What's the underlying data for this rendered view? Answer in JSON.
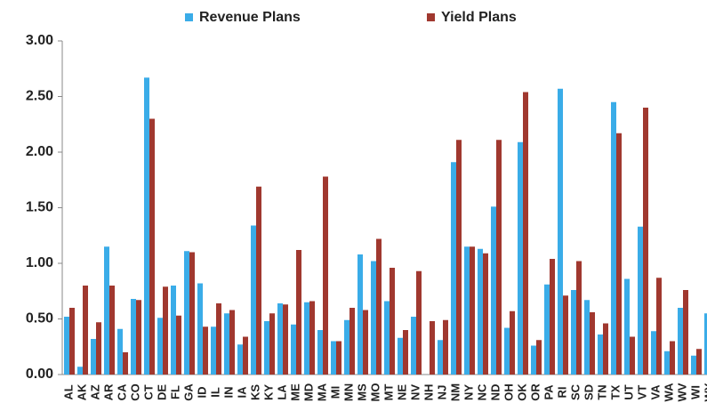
{
  "chart_data": {
    "type": "bar",
    "categories": [
      "AL",
      "AK",
      "AZ",
      "AR",
      "CA",
      "CO",
      "CT",
      "DE",
      "FL",
      "GA",
      "ID",
      "IL",
      "IN",
      "IA",
      "KS",
      "KY",
      "LA",
      "ME",
      "MD",
      "MA",
      "MI",
      "MN",
      "MS",
      "MO",
      "MT",
      "NE",
      "NV",
      "NH",
      "NJ",
      "NM",
      "NY",
      "NC",
      "ND",
      "OH",
      "OK",
      "OR",
      "PA",
      "RI",
      "SC",
      "SD",
      "TN",
      "TX",
      "UT",
      "VT",
      "VA",
      "WA",
      "WV",
      "WI",
      "WY"
    ],
    "series": [
      {
        "name": "Revenue Plans",
        "color": "#3aace8",
        "values": [
          0.52,
          0.07,
          0.32,
          1.15,
          0.41,
          0.68,
          2.67,
          0.51,
          0.8,
          1.11,
          0.82,
          0.43,
          0.55,
          0.27,
          1.34,
          0.48,
          0.64,
          0.45,
          0.65,
          0.4,
          0.3,
          0.49,
          1.08,
          1.02,
          0.66,
          0.33,
          0.52,
          0,
          0.31,
          1.91,
          1.15,
          1.13,
          1.51,
          0.42,
          2.09,
          0.26,
          0.81,
          2.57,
          0.76,
          0.67,
          0.36,
          2.45,
          0.86,
          1.33,
          0.39,
          0.21,
          0.6,
          0.17,
          0.55
        ]
      },
      {
        "name": "Yield Plans",
        "color": "#a0382f",
        "values": [
          0.6,
          0.8,
          0.47,
          0.8,
          0.2,
          0.67,
          2.3,
          0.79,
          0.53,
          1.1,
          0.43,
          0.64,
          0.58,
          0.34,
          1.69,
          0.55,
          0.63,
          1.12,
          0.66,
          1.78,
          0.3,
          0.6,
          0.58,
          1.22,
          0.96,
          0.4,
          0.93,
          0.48,
          0.49,
          2.11,
          1.15,
          1.09,
          2.11,
          0.57,
          2.54,
          0.31,
          1.04,
          0.71,
          1.02,
          0.56,
          0.46,
          2.17,
          0.34,
          2.4,
          0.87,
          0.3,
          0.76,
          0.23,
          null
        ]
      }
    ],
    "ylim": [
      0,
      3
    ],
    "yticks": [
      {
        "value": 0,
        "label": "0.00"
      },
      {
        "value": 0.5,
        "label": "0.50"
      },
      {
        "value": 1,
        "label": "1.00"
      },
      {
        "value": 1.5,
        "label": "1.50"
      },
      {
        "value": 2,
        "label": "2.00"
      },
      {
        "value": 2.5,
        "label": "2.50"
      },
      {
        "value": 3,
        "label": "3.00"
      }
    ],
    "grid": false
  }
}
